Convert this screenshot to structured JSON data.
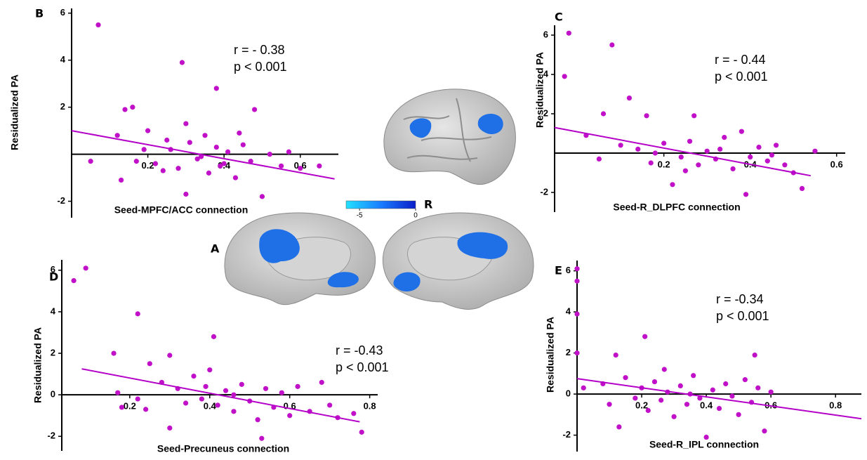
{
  "chart_data": [
    {
      "type": "scatter",
      "panel": "B",
      "x_label": "Seed-MPFC/ACC connection",
      "y_label": "Residualized PA",
      "annotation": [
        "r = - 0.38",
        "p < 0.001"
      ],
      "color": "#c010c8",
      "line_color": "#b400c8",
      "x": [
        0.07,
        0.29,
        0.38,
        0.14,
        0.16,
        0.48,
        0.12,
        0.17,
        0.05,
        0.13,
        0.2,
        0.25,
        0.3,
        0.22,
        0.26,
        0.28,
        0.31,
        0.33,
        0.35,
        0.36,
        0.38,
        0.4,
        0.41,
        0.43,
        0.45,
        0.47,
        0.5,
        0.52,
        0.55,
        0.57,
        0.6,
        0.65,
        0.34,
        0.24,
        0.19,
        0.44,
        0.39,
        0.3
      ],
      "values": [
        5.5,
        3.9,
        2.8,
        1.9,
        2.0,
        1.9,
        0.8,
        -0.3,
        -0.3,
        -1.1,
        1.0,
        0.6,
        -1.7,
        -0.4,
        0.2,
        -0.6,
        0.5,
        -0.2,
        0.8,
        -0.8,
        0.3,
        -0.4,
        0.1,
        -1.0,
        0.4,
        -0.3,
        -1.8,
        0.0,
        -0.5,
        0.1,
        -0.6,
        -0.5,
        -0.1,
        -0.7,
        0.2,
        0.9,
        -0.5,
        1.3
      ],
      "fit": {
        "x": [
          0,
          0.69
        ],
        "y": [
          1.0,
          -1.05
        ]
      },
      "xlim": [
        0,
        0.7
      ],
      "ylim": [
        -2.7,
        6.2
      ],
      "xticks": [
        0.2,
        0.4,
        0.6
      ],
      "yticks": [
        -2,
        2,
        4,
        6
      ]
    },
    {
      "type": "scatter",
      "panel": "C",
      "x_label": "Seed-R_DLPFC connection",
      "y_label": "Residualized PA",
      "annotation": [
        "r = - 0.44",
        "p < 0.001"
      ],
      "color": "#c010c8",
      "line_color": "#b400c8",
      "x": [
        -0.03,
        -0.02,
        0.08,
        0.12,
        0.06,
        0.16,
        0.27,
        0.02,
        0.05,
        0.1,
        0.14,
        0.17,
        0.2,
        0.22,
        0.24,
        0.26,
        0.28,
        0.3,
        0.32,
        0.34,
        0.36,
        0.38,
        0.39,
        0.4,
        0.42,
        0.44,
        0.46,
        0.48,
        0.5,
        0.52,
        0.55,
        0.18,
        0.25,
        0.33,
        0.45
      ],
      "values": [
        3.9,
        6.1,
        5.5,
        2.8,
        2.0,
        1.9,
        1.9,
        0.9,
        -0.3,
        0.4,
        0.2,
        -0.5,
        0.5,
        -1.6,
        -0.2,
        0.6,
        -0.6,
        0.1,
        -0.3,
        0.8,
        -0.8,
        1.1,
        -2.1,
        -0.2,
        0.3,
        -0.4,
        0.4,
        -0.6,
        -1.0,
        -1.8,
        0.1,
        0.0,
        -0.9,
        0.2,
        -0.1
      ],
      "fit": {
        "x": [
          -0.053,
          0.54
        ],
        "y": [
          1.3,
          -1.15
        ]
      },
      "xlim": [
        -0.053,
        0.62
      ],
      "ylim": [
        -3,
        6.5
      ],
      "xticks": [
        0.2,
        0.4,
        0.6
      ],
      "yticks": [
        -2,
        2,
        4,
        6
      ]
    },
    {
      "type": "scatter",
      "panel": "D",
      "x_label": "Seed-Precuneus connection",
      "y_label": "Residualized PA",
      "annotation": [
        "r = -0.43",
        "p < 0.001"
      ],
      "color": "#c010c8",
      "line_color": "#b400c8",
      "x": [
        0.06,
        0.09,
        0.22,
        0.41,
        0.16,
        0.25,
        0.3,
        0.17,
        0.18,
        0.22,
        0.24,
        0.28,
        0.3,
        0.32,
        0.34,
        0.36,
        0.38,
        0.4,
        0.42,
        0.44,
        0.46,
        0.48,
        0.5,
        0.52,
        0.54,
        0.56,
        0.58,
        0.6,
        0.62,
        0.65,
        0.68,
        0.7,
        0.72,
        0.76,
        0.78,
        0.53,
        0.46,
        0.39
      ],
      "values": [
        5.5,
        6.1,
        3.9,
        2.8,
        2.0,
        1.5,
        1.9,
        0.1,
        -0.6,
        -0.2,
        -0.7,
        0.6,
        -1.6,
        0.3,
        -0.4,
        0.9,
        -0.2,
        1.2,
        -0.5,
        0.2,
        -0.8,
        0.5,
        -0.3,
        -1.2,
        0.3,
        -0.6,
        0.1,
        -1.0,
        0.4,
        -0.8,
        0.6,
        -0.5,
        -1.1,
        -0.9,
        -1.8,
        -2.1,
        0.0,
        0.4
      ],
      "fit": {
        "x": [
          0.08,
          0.775
        ],
        "y": [
          1.25,
          -1.3
        ]
      },
      "xlim": [
        0.03,
        0.82
      ],
      "ylim": [
        -2.7,
        6.5
      ],
      "xticks": [
        0.2,
        0.4,
        0.6,
        0.8
      ],
      "yticks": [
        -2,
        0,
        2,
        4,
        6
      ]
    },
    {
      "type": "scatter",
      "panel": "E",
      "x_label": "Seed-R_IPL connection",
      "y_label": "Residualized PA",
      "annotation": [
        "r = -0.34",
        "p < 0.001"
      ],
      "color": "#c010c8",
      "line_color": "#b400c8",
      "x": [
        0.0,
        0.0,
        0.0,
        0.0,
        0.21,
        0.12,
        0.55,
        0.02,
        0.08,
        0.1,
        0.13,
        0.15,
        0.18,
        0.2,
        0.22,
        0.24,
        0.26,
        0.28,
        0.3,
        0.32,
        0.34,
        0.36,
        0.38,
        0.4,
        0.42,
        0.44,
        0.46,
        0.48,
        0.5,
        0.52,
        0.54,
        0.56,
        0.58,
        0.6,
        0.27,
        0.35
      ],
      "values": [
        6.1,
        5.5,
        3.9,
        2.0,
        2.8,
        1.9,
        1.9,
        0.3,
        0.5,
        -0.5,
        -1.6,
        0.8,
        -0.2,
        0.3,
        -0.8,
        0.6,
        -0.3,
        0.1,
        -1.1,
        0.4,
        -0.5,
        0.9,
        -0.2,
        -2.1,
        0.2,
        -0.7,
        0.5,
        -0.1,
        -1.0,
        0.7,
        -0.4,
        0.3,
        -1.8,
        0.1,
        1.2,
        0.0
      ],
      "fit": {
        "x": [
          0,
          0.88
        ],
        "y": [
          0.75,
          -1.2
        ]
      },
      "xlim": [
        0,
        0.88
      ],
      "ylim": [
        -2.8,
        6.5
      ],
      "xticks": [
        0.2,
        0.4,
        0.6,
        0.8
      ],
      "yticks": [
        -2,
        0,
        2,
        4,
        6
      ]
    }
  ],
  "brain": {
    "panel": "A",
    "hemisphere": "R",
    "colorbar": {
      "range": [
        -6.2,
        0
      ],
      "ticks": [
        -5,
        0
      ]
    }
  }
}
